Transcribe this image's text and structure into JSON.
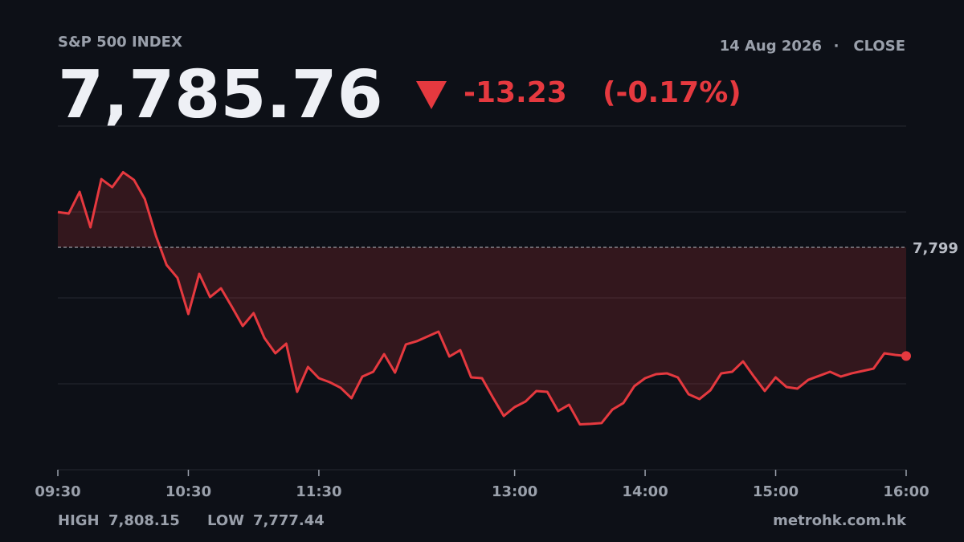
{
  "header": {
    "label": "S&P 500 INDEX",
    "date": "14 Aug 2026",
    "session": "CLOSE",
    "last": "7,785.76",
    "change": "-13.23",
    "change_pct": "(-0.17%)"
  },
  "footer": {
    "high_label": "HIGH",
    "high": "7,808.15",
    "low_label": "LOW",
    "low": "7,777.44",
    "source": "metrohk.com.hk"
  },
  "chart_data": {
    "type": "line",
    "x": [
      570,
      575,
      580,
      585,
      590,
      595,
      600,
      605,
      610,
      615,
      620,
      625,
      630,
      635,
      640,
      645,
      650,
      655,
      660,
      665,
      670,
      675,
      680,
      685,
      690,
      695,
      700,
      705,
      710,
      715,
      720,
      725,
      730,
      735,
      740,
      745,
      750,
      755,
      760,
      765,
      770,
      775,
      780,
      785,
      790,
      795,
      800,
      805,
      810,
      815,
      820,
      825,
      830,
      835,
      840,
      845,
      850,
      855,
      860,
      865,
      870,
      875,
      880,
      885,
      890,
      895,
      900,
      905,
      910,
      915,
      920,
      925,
      930,
      935,
      940,
      945,
      950,
      955,
      960
    ],
    "series": [
      {
        "color": "#e5393f",
        "values": [
          7803.3,
          7803.11,
          7805.75,
          7801.44,
          7807.31,
          7806.33,
          7808.15,
          7807.21,
          7804.87,
          7800.47,
          7796.85,
          7795.28,
          7790.88,
          7795.77,
          7792.94,
          7794.01,
          7791.76,
          7789.42,
          7790.98,
          7787.95,
          7786.09,
          7787.27,
          7781.4,
          7784.43,
          7783.06,
          7782.57,
          7781.89,
          7780.62,
          7783.26,
          7783.84,
          7785.99,
          7783.74,
          7787.17,
          7787.56,
          7788.15,
          7788.73,
          7785.7,
          7786.48,
          7783.16,
          7783.06,
          7780.71,
          7778.46,
          7779.54,
          7780.22,
          7781.5,
          7781.4,
          7779.05,
          7779.83,
          7777.44,
          7777.5,
          7777.6,
          7779.25,
          7780.03,
          7782.08,
          7783.06,
          7783.55,
          7783.65,
          7783.16,
          7781.1,
          7780.52,
          7781.59,
          7783.65,
          7783.84,
          7785.11,
          7783.26,
          7781.5,
          7783.16,
          7781.98,
          7781.79,
          7782.86,
          7783.35,
          7783.84,
          7783.26,
          7783.65,
          7783.94,
          7784.23,
          7786.09,
          7785.9,
          7785.76
        ]
      }
    ],
    "xlim": [
      570,
      960
    ],
    "xticks": [
      {
        "value": 570,
        "label": "09:30"
      },
      {
        "value": 630,
        "label": "10:30"
      },
      {
        "value": 690,
        "label": "11:30"
      },
      {
        "value": 780,
        "label": "13:00"
      },
      {
        "value": 840,
        "label": "14:00"
      },
      {
        "value": 900,
        "label": "15:00"
      },
      {
        "value": 960,
        "label": "16:00"
      }
    ],
    "ylim": [
      7771.91,
      7813.77
    ],
    "reference": {
      "value": 7799,
      "label": "7,799"
    },
    "grid": true
  }
}
